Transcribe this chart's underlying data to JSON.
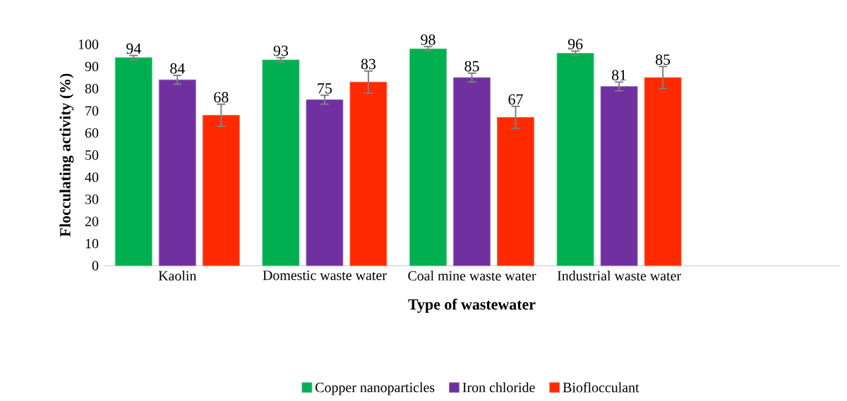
{
  "chart_data": {
    "type": "bar",
    "xlabel": "Type of wastewater",
    "ylabel": "Flocculating activity (%)",
    "categories": [
      "Kaolin",
      "Domestic waste water",
      "Coal mine waste water",
      "Industrial waste water"
    ],
    "series": [
      {
        "name": "Copper nanoparticles",
        "color": "#00b050",
        "values": [
          94,
          93,
          98,
          96
        ],
        "errors": [
          1,
          1,
          1,
          1
        ]
      },
      {
        "name": "Iron chloride",
        "color": "#7030a0",
        "values": [
          84,
          75,
          85,
          81
        ],
        "errors": [
          2,
          2,
          2,
          2
        ]
      },
      {
        "name": "Bioflocculant",
        "color": "#ff2a00",
        "values": [
          68,
          83,
          67,
          85
        ],
        "errors": [
          5,
          5,
          5,
          5
        ]
      }
    ],
    "ylim": [
      0,
      100
    ],
    "yticks": [
      0,
      10,
      20,
      30,
      40,
      50,
      60,
      70,
      80,
      90,
      100
    ],
    "data_labels": true,
    "legend": "bottom",
    "grid": false
  }
}
